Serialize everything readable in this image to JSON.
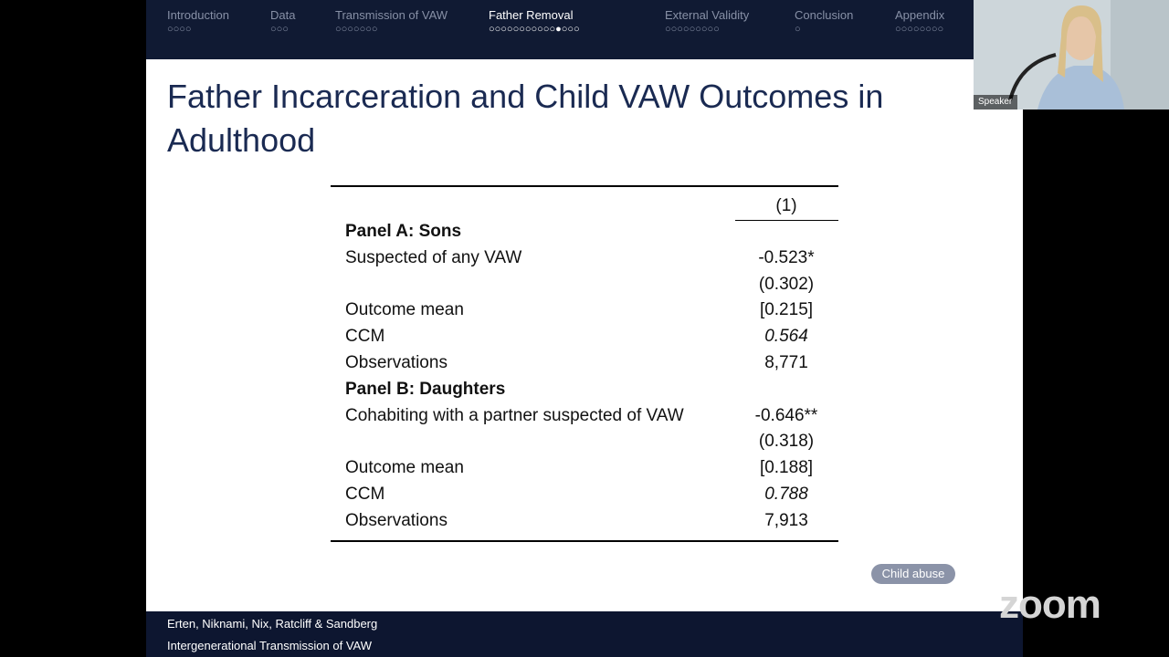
{
  "nav": {
    "sections": [
      "Introduction",
      "Data",
      "Transmission of VAW",
      "Father Removal",
      "External Validity",
      "Conclusion",
      "Appendix"
    ]
  },
  "slide": {
    "title": "Father Incarceration and Child VAW Outcomes in Adulthood",
    "table": {
      "column_header": "(1)",
      "panels": [
        {
          "heading": "Panel A: Sons",
          "rows": [
            {
              "label": "Suspected of any VAW",
              "value": "-0.523*"
            },
            {
              "value": "(0.302)"
            },
            {
              "label": "Outcome mean",
              "value": "[0.215]"
            },
            {
              "label": "CCM",
              "value": "0.564"
            },
            {
              "label": "Observations",
              "value": "8,771"
            }
          ]
        },
        {
          "heading": "Panel B: Daughters",
          "rows": [
            {
              "label": "Cohabiting with a partner suspected of VAW",
              "value": "-0.646**"
            },
            {
              "value": "(0.318)"
            },
            {
              "label": "Outcome mean",
              "value": "[0.188]"
            },
            {
              "label": "CCM",
              "value": "0.788"
            },
            {
              "label": "Observations",
              "value": "7,913"
            }
          ]
        }
      ]
    },
    "button": "Child abuse"
  },
  "footer": {
    "authors": "Erten, Niknami, Nix, Ratcliff & Sandberg",
    "talk_title": "Intergenerational Transmission of VAW"
  },
  "video": {
    "speaker_label": "Speaker"
  },
  "app": {
    "logo": "zoom"
  }
}
